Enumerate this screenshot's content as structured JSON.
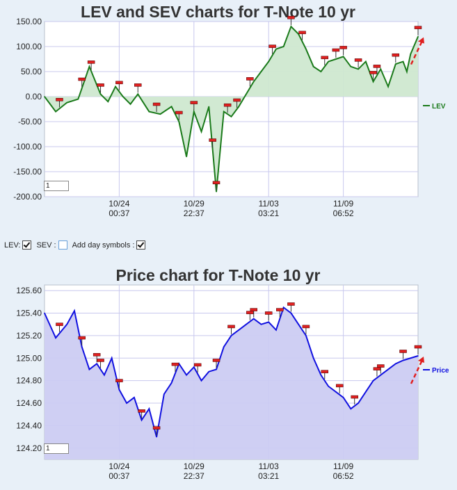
{
  "chart_data": [
    {
      "type": "line",
      "title": "LEV and SEV charts for T-Note 10 yr",
      "series": [
        {
          "name": "LEV",
          "color": "#1a7a1a",
          "fill": "#cfe8d0",
          "x": [
            0,
            3,
            6,
            9,
            12,
            15,
            17,
            19,
            21,
            23,
            25,
            28,
            31,
            34,
            36,
            38,
            40,
            42,
            44,
            46,
            48,
            50,
            52,
            54,
            56,
            58,
            60,
            62,
            64,
            66,
            68,
            70,
            72,
            74,
            76,
            78,
            80,
            82,
            84,
            86,
            88,
            90,
            92,
            94,
            96,
            97,
            98,
            100
          ],
          "values": [
            0,
            -30,
            -12,
            -5,
            60,
            5,
            -10,
            20,
            0,
            -15,
            5,
            -30,
            -35,
            -20,
            -50,
            -120,
            -30,
            -70,
            -20,
            -190,
            -30,
            -40,
            -20,
            5,
            30,
            50,
            70,
            95,
            100,
            140,
            125,
            95,
            60,
            50,
            70,
            75,
            80,
            60,
            55,
            70,
            30,
            55,
            20,
            65,
            70,
            50,
            85,
            120
          ]
        }
      ],
      "annotation_markers_x": [
        4,
        10,
        12.5,
        15,
        20,
        25,
        30,
        36,
        40,
        45,
        46,
        49,
        51.5,
        55,
        61,
        66,
        69,
        75,
        78,
        80,
        84,
        88,
        89,
        94,
        100
      ],
      "ylim": [
        -200,
        150
      ],
      "yticks": [
        "150.00",
        "100.00",
        "50.00",
        "0.00",
        "-50.00",
        "-100.00",
        "-150.00",
        "-200.00"
      ],
      "xticks": [
        {
          "date": "10/24",
          "time": "00:37"
        },
        {
          "date": "10/29",
          "time": "22:37"
        },
        {
          "date": "11/03",
          "time": "03:21"
        },
        {
          "date": "11/09",
          "time": "06:52"
        }
      ],
      "legend": "right",
      "grid": true
    },
    {
      "type": "line",
      "title": "Price chart for T-Note 10 yr",
      "series": [
        {
          "name": "Price",
          "color": "#1010e0",
          "fill": "#ccccf2",
          "x": [
            0,
            3,
            6,
            8,
            10,
            12,
            14,
            16,
            18,
            20,
            22,
            24,
            26,
            28,
            30,
            32,
            34,
            36,
            38,
            40,
            42,
            44,
            46,
            48,
            50,
            52,
            54,
            56,
            58,
            60,
            62,
            64,
            66,
            68,
            70,
            72,
            74,
            76,
            78,
            80,
            82,
            84,
            86,
            88,
            90,
            92,
            94,
            96,
            98,
            100
          ],
          "values": [
            125.4,
            125.18,
            125.3,
            125.42,
            125.1,
            124.9,
            124.95,
            124.85,
            125.0,
            124.72,
            124.6,
            124.65,
            124.45,
            124.55,
            124.3,
            124.68,
            124.78,
            124.95,
            124.85,
            124.92,
            124.8,
            124.88,
            124.9,
            125.1,
            125.2,
            125.25,
            125.3,
            125.35,
            125.3,
            125.32,
            125.25,
            125.45,
            125.4,
            125.3,
            125.2,
            125.0,
            124.85,
            124.75,
            124.7,
            124.65,
            124.55,
            124.6,
            124.7,
            124.8,
            124.85,
            124.9,
            124.95,
            124.98,
            125.0,
            125.02
          ],
          "markers_x": [
            5,
            16,
            20,
            33,
            45,
            52,
            58,
            68,
            72,
            82,
            92,
            100
          ]
        }
      ],
      "annotation_markers_x": [
        4,
        10,
        14,
        15,
        20,
        26,
        30,
        35,
        41,
        46,
        50,
        55,
        56,
        60,
        63,
        66,
        70,
        75,
        79,
        83,
        89,
        90,
        96,
        100
      ],
      "ylim": [
        124.1,
        125.65
      ],
      "yticks": [
        "125.60",
        "125.40",
        "125.20",
        "125.00",
        "124.80",
        "124.60",
        "124.40",
        "124.20"
      ],
      "xticks": [
        {
          "date": "10/24",
          "time": "00:37"
        },
        {
          "date": "10/29",
          "time": "22:37"
        },
        {
          "date": "11/03",
          "time": "03:21"
        },
        {
          "date": "11/09",
          "time": "06:52"
        }
      ],
      "legend": "right",
      "grid": true
    }
  ],
  "controls": {
    "lev_label": "LEV:",
    "sev_label": "SEV :",
    "day_label": "Add day symbols :"
  },
  "zoom_value_1": "1",
  "zoom_value_2": "1"
}
